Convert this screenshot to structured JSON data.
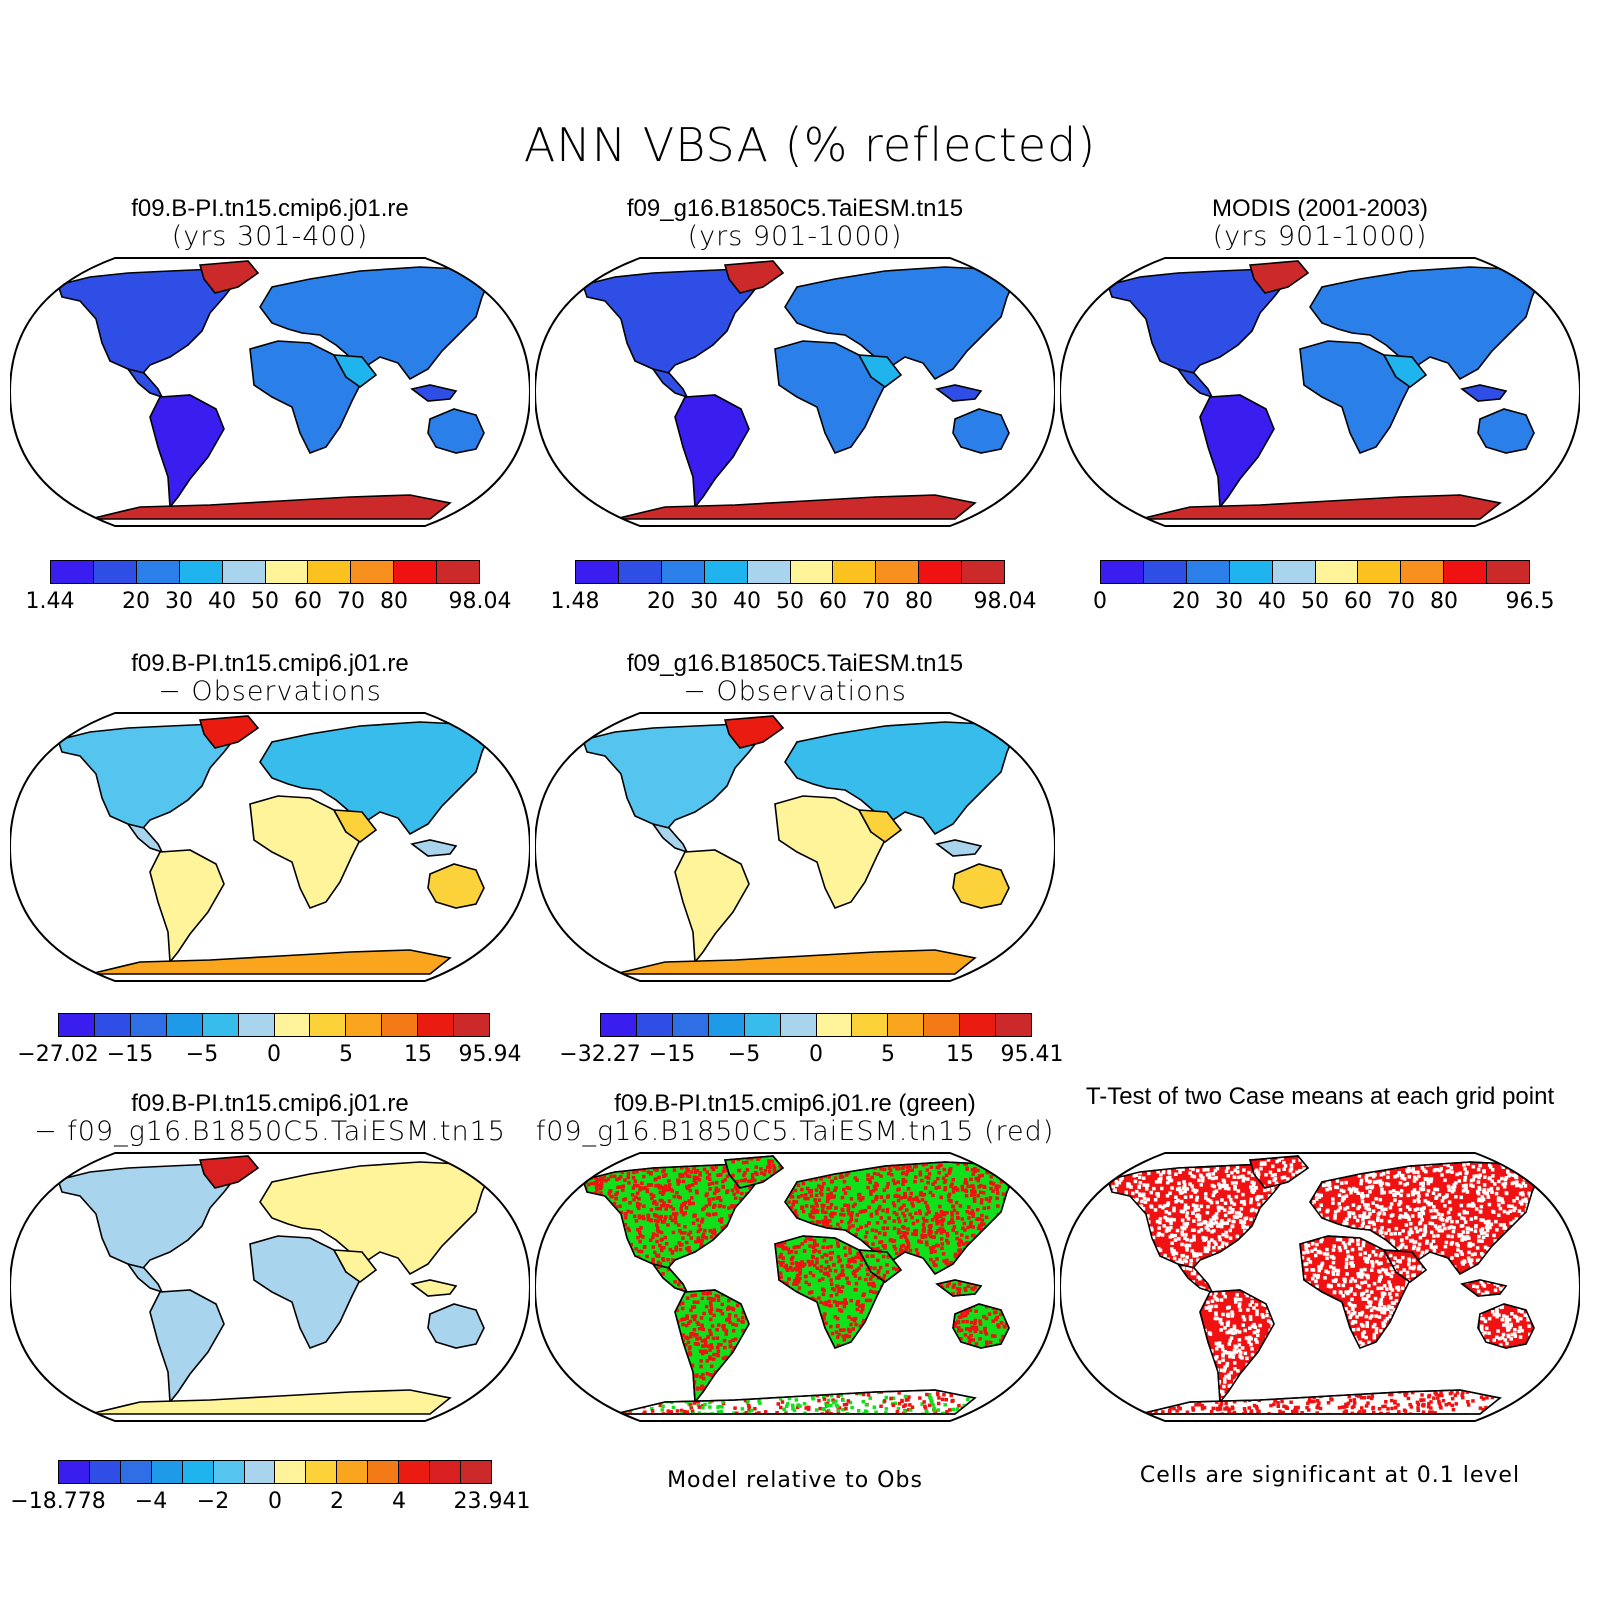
{
  "title": "ANN VBSA (% reflected)",
  "colors": {
    "abs": [
      "#3a1ef0",
      "#2e4ee6",
      "#2a7fe8",
      "#1fb4ee",
      "#a8d4ee",
      "#fff49a",
      "#fbc21f",
      "#f7901e",
      "#f01212",
      "#cc2a2a"
    ],
    "diff": [
      "#3a1ef0",
      "#2e4ee6",
      "#2e6fe6",
      "#1f9ae8",
      "#37bcec",
      "#a8d4ee",
      "#fff49a",
      "#fbd23a",
      "#f9a51e",
      "#f47a18",
      "#ea1c12",
      "#cc2a2a"
    ],
    "cdiff": [
      "#3a1ef0",
      "#2e4ee6",
      "#2e6fe6",
      "#1f9ae8",
      "#1fb4ee",
      "#55c4ee",
      "#a8d4ee",
      "#fff49a",
      "#fbd23a",
      "#f9a51e",
      "#f47a18",
      "#ea1c12",
      "#d82020",
      "#cc2a2a"
    ],
    "green": "#11e11a",
    "red": "#f01212",
    "white": "#ffffff"
  },
  "panels": [
    {
      "id": "case1",
      "line1": "f09.B-PI.tn15.cmip6.j01.re",
      "line2": "(yrs 301-400)",
      "scheme": "abs",
      "labels": [
        "1.44",
        "20",
        "30",
        "40",
        "50",
        "60",
        "70",
        "80",
        "98.04"
      ]
    },
    {
      "id": "case2",
      "line1": "f09_g16.B1850C5.TaiESM.tn15",
      "line2": "(yrs 901-1000)",
      "scheme": "abs",
      "labels": [
        "1.48",
        "20",
        "30",
        "40",
        "50",
        "60",
        "70",
        "80",
        "98.04"
      ]
    },
    {
      "id": "obs",
      "line1": "MODIS (2001-2003)",
      "line2": "(yrs 901-1000)",
      "scheme": "abs",
      "labels": [
        "0",
        "20",
        "30",
        "40",
        "50",
        "60",
        "70",
        "80",
        "96.5"
      ]
    },
    {
      "id": "case1-obs",
      "line1": "f09.B-PI.tn15.cmip6.j01.re",
      "line2": "− Observations",
      "scheme": "diff",
      "labels": [
        "−27.02",
        "−15",
        "−5",
        "0",
        "5",
        "15",
        "95.94"
      ]
    },
    {
      "id": "case2-obs",
      "line1": "f09_g16.B1850C5.TaiESM.tn15",
      "line2": "− Observations",
      "scheme": "diff",
      "labels": [
        "−32.27",
        "−15",
        "−5",
        "0",
        "5",
        "15",
        "95.41"
      ]
    },
    {
      "id": "case1-case2",
      "line1": "f09.B-PI.tn15.cmip6.j01.re",
      "line2": "− f09_g16.B1850C5.TaiESM.tn15",
      "scheme": "cdiff",
      "labels": [
        "−18.778",
        "−4",
        "−2",
        "0",
        "2",
        "4",
        "23.941"
      ]
    },
    {
      "id": "closer",
      "line1": "f09.B-PI.tn15.cmip6.j01.re (green)",
      "line2": "f09_g16.B1850C5.TaiESM.tn15 (red)",
      "scheme": "greenred",
      "note": "Model relative to Obs"
    },
    {
      "id": "ttest",
      "line1": "T-Test of two Case means at each grid point",
      "line2": "",
      "scheme": "ttest",
      "note": "Cells are significant at 0.1 level"
    }
  ]
}
